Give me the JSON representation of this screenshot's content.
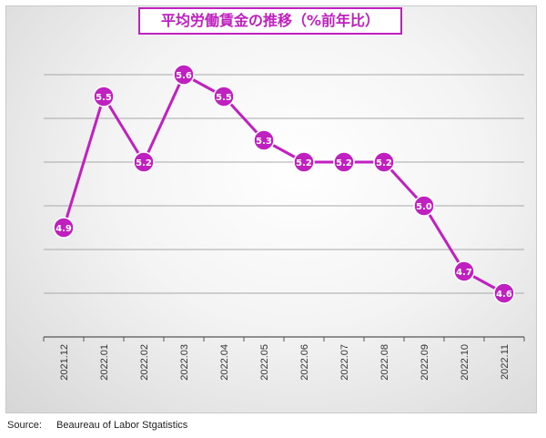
{
  "chart_data": {
    "type": "line",
    "title": "平均労働賃金の推移（%前年比）",
    "categories": [
      "2021.12",
      "2022.01",
      "2022.02",
      "2022.03",
      "2022.04",
      "2022.05",
      "2022.06",
      "2022.07",
      "2022.08",
      "2022.09",
      "2022.10",
      "2022.11"
    ],
    "series": [
      {
        "values": [
          4.9,
          5.5,
          5.2,
          5.6,
          5.5,
          5.3,
          5.2,
          5.2,
          5.2,
          5.0,
          4.7,
          4.6
        ]
      }
    ],
    "data_labels": [
      "4.9",
      "5.5",
      "5.2",
      "5.6",
      "5.5",
      "5.3",
      "5.2",
      "5.2",
      "5.2",
      "5.0",
      "4.7",
      "4.6"
    ],
    "ylim": [
      4.4,
      5.6
    ],
    "gridlines_at": [
      4.6,
      4.8,
      5.0,
      5.2,
      5.4,
      5.6
    ],
    "grid": true,
    "legend": false,
    "line_color": "#c020c0",
    "marker_color": "#c020c0"
  },
  "source": {
    "label": "Source:",
    "text": "Beaureau of Labor Stgatistics"
  }
}
